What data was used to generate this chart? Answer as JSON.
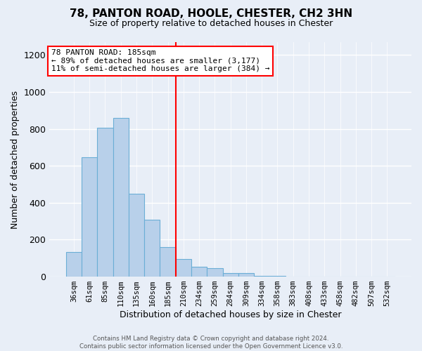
{
  "title": "78, PANTON ROAD, HOOLE, CHESTER, CH2 3HN",
  "subtitle": "Size of property relative to detached houses in Chester",
  "xlabel": "Distribution of detached houses by size in Chester",
  "ylabel": "Number of detached properties",
  "bar_labels": [
    "36sqm",
    "61sqm",
    "85sqm",
    "110sqm",
    "135sqm",
    "160sqm",
    "185sqm",
    "210sqm",
    "234sqm",
    "259sqm",
    "284sqm",
    "309sqm",
    "334sqm",
    "358sqm",
    "383sqm",
    "408sqm",
    "433sqm",
    "458sqm",
    "482sqm",
    "507sqm",
    "532sqm"
  ],
  "bar_values": [
    135,
    645,
    805,
    860,
    450,
    310,
    160,
    97,
    55,
    45,
    18,
    20,
    5,
    5,
    0,
    0,
    0,
    0,
    0,
    0,
    0
  ],
  "bar_color": "#b8d0ea",
  "bar_edge_color": "#6baed6",
  "highlight_index": 6,
  "ylim": [
    0,
    1270
  ],
  "yticks": [
    0,
    200,
    400,
    600,
    800,
    1000,
    1200
  ],
  "annotation_line1": "78 PANTON ROAD: 185sqm",
  "annotation_line2": "← 89% of detached houses are smaller (3,177)",
  "annotation_line3": "11% of semi-detached houses are larger (384) →",
  "footer_line1": "Contains HM Land Registry data © Crown copyright and database right 2024.",
  "footer_line2": "Contains public sector information licensed under the Open Government Licence v3.0.",
  "background_color": "#e8eef7",
  "plot_bg_color": "#e8eef7"
}
